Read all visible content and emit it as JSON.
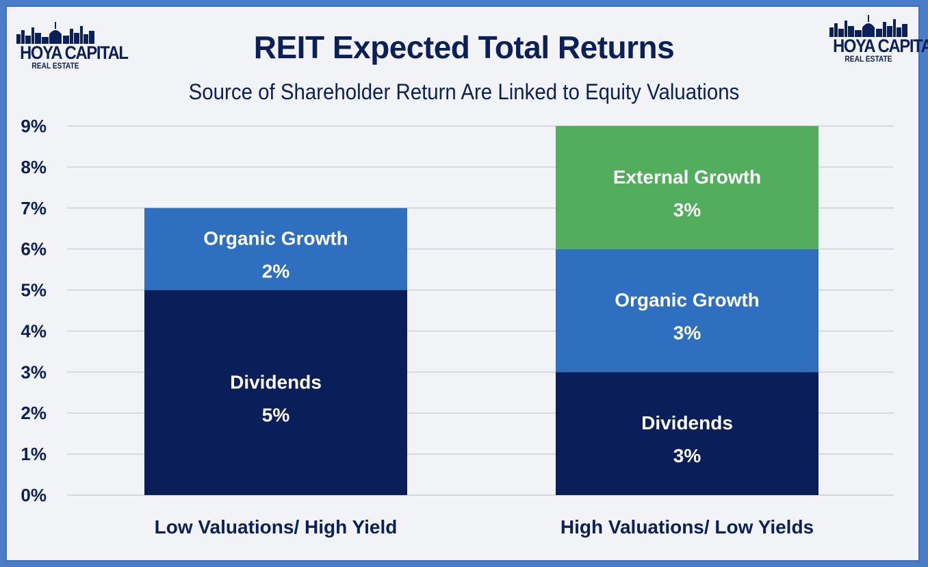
{
  "logo": {
    "line1": "HOYA CAPITAL",
    "line2": "REAL ESTATE"
  },
  "colors": {
    "dividends": "#0a1f5a",
    "organic_growth": "#2f6fbf",
    "external_growth": "#52ad5c",
    "text": "#0b1f58",
    "grid": "#d6d8de"
  },
  "chart_data": {
    "type": "bar",
    "stacked": true,
    "title": "REIT Expected Total Returns",
    "subtitle": "Source of Shareholder Return Are Linked to Equity Valuations",
    "categories": [
      "Low Valuations/ High Yield",
      "High Valuations/ Low Yields"
    ],
    "ylim": [
      0,
      9
    ],
    "yticks": [
      "0%",
      "1%",
      "2%",
      "3%",
      "4%",
      "5%",
      "6%",
      "7%",
      "8%",
      "9%"
    ],
    "grid": true,
    "legend": "none",
    "series": [
      {
        "name": "Dividends",
        "values": [
          5,
          3
        ],
        "labels": [
          "5%",
          "3%"
        ]
      },
      {
        "name": "Organic Growth",
        "values": [
          2,
          3
        ],
        "labels": [
          "2%",
          "3%"
        ]
      },
      {
        "name": "External Growth",
        "values": [
          0,
          3
        ],
        "labels": [
          "",
          "3%"
        ]
      }
    ]
  }
}
